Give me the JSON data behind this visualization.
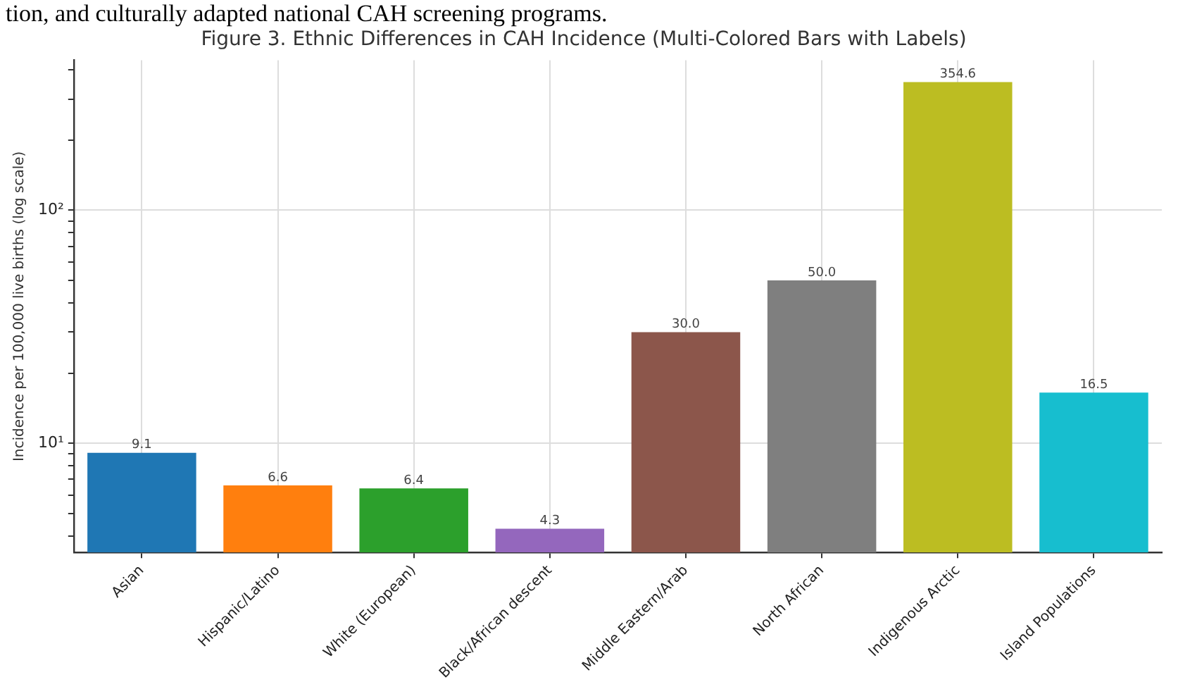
{
  "chart_data": {
    "type": "bar",
    "title": "Figure 3. Ethnic Differences in CAH Incidence (Multi-Colored Bars with Labels)",
    "ylabel": "Incidence per 100,000 live births (log scale)",
    "annotations": [
      "tion, and culturally adapted national CAH screening programs."
    ],
    "categories": [
      "Asian",
      "Hispanic/Latino",
      "White (European)",
      "Black/African descent",
      "Middle Eastern/Arab",
      "North African",
      "Indigenous Arctic",
      "Island Populations"
    ],
    "values": [
      9.1,
      6.6,
      6.4,
      4.3,
      30.0,
      50.0,
      354.6,
      16.5
    ],
    "colors": [
      "#1f77b4",
      "#ff7f0e",
      "#2ca02c",
      "#9467bd",
      "#8c564b",
      "#7f7f7f",
      "#bcbd22",
      "#17becf"
    ],
    "value_labels": [
      "9.1",
      "6.6",
      "6.4",
      "4.3",
      "30.0",
      "50.0",
      "354.6",
      "16.5"
    ],
    "log": true,
    "grid": true,
    "legend": false,
    "ylim": [
      3.4,
      440
    ],
    "yticks": [
      {
        "value": 4,
        "label": null
      },
      {
        "value": 5,
        "label": null
      },
      {
        "value": 6,
        "label": null
      },
      {
        "value": 7,
        "label": null
      },
      {
        "value": 8,
        "label": null
      },
      {
        "value": 9,
        "label": null
      },
      {
        "value": 10,
        "label": "10¹"
      },
      {
        "value": 20,
        "label": null
      },
      {
        "value": 30,
        "label": null
      },
      {
        "value": 40,
        "label": null
      },
      {
        "value": 50,
        "label": null
      },
      {
        "value": 60,
        "label": null
      },
      {
        "value": 70,
        "label": null
      },
      {
        "value": 80,
        "label": null
      },
      {
        "value": 90,
        "label": null
      },
      {
        "value": 100,
        "label": "10²"
      },
      {
        "value": 200,
        "label": null
      },
      {
        "value": 300,
        "label": null
      },
      {
        "value": 400,
        "label": null
      }
    ]
  }
}
